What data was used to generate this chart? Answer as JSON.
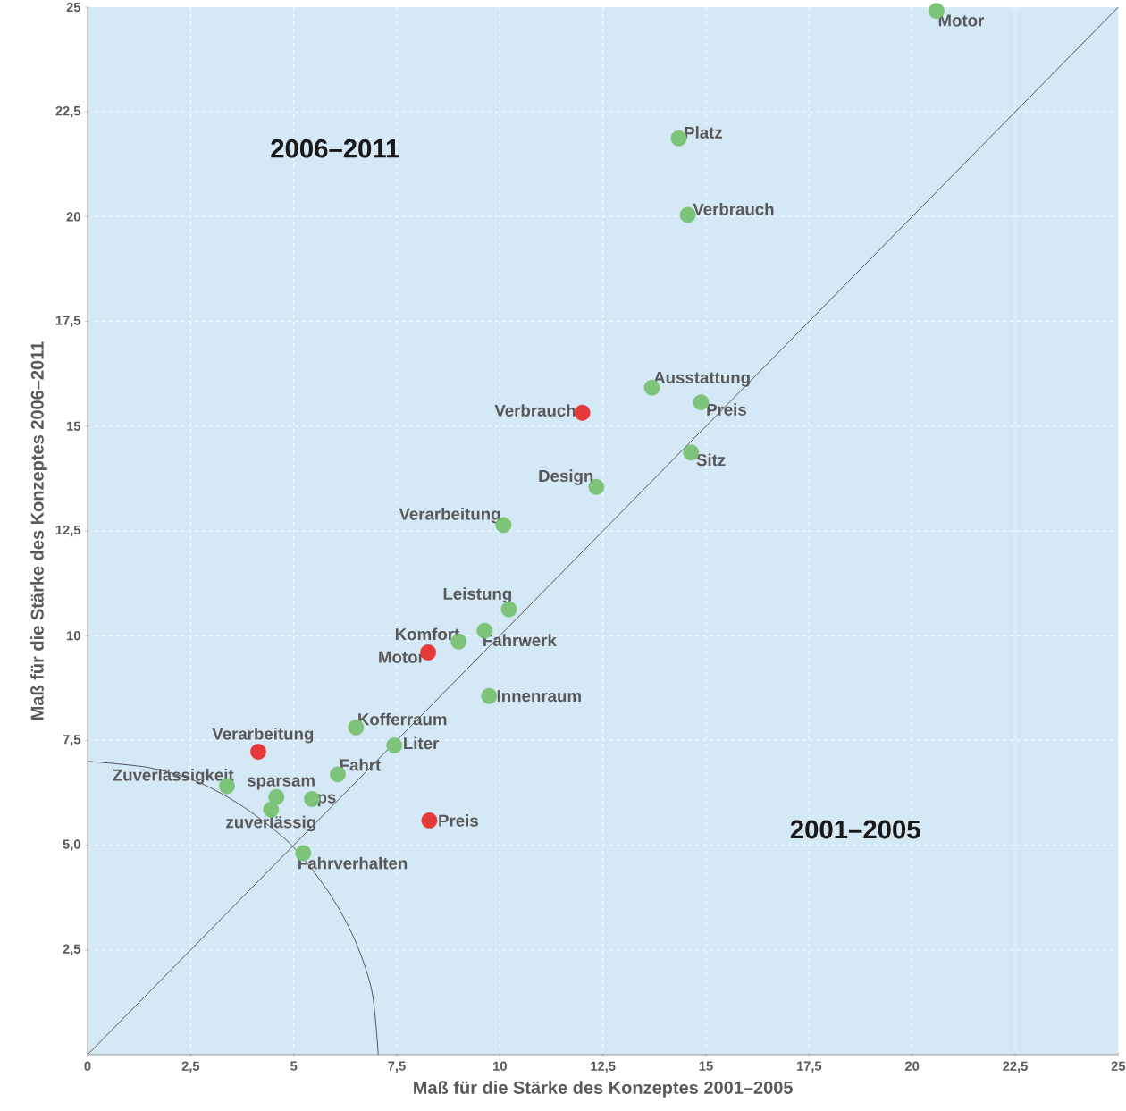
{
  "chart_data": {
    "type": "scatter",
    "xlabel": "Maß für die Stärke des Konzeptes 2001–2005",
    "ylabel": "Maß für die Stärke des Konzeptes 2006–2011",
    "xlim": [
      0,
      25
    ],
    "ylim": [
      0,
      25
    ],
    "xticks": [
      0,
      {
        "value": 2.5,
        "label": "2,5"
      },
      5,
      {
        "value": 7.5,
        "label": "7,5"
      },
      10,
      {
        "value": 12.5,
        "label": "12,5"
      },
      15,
      {
        "value": 17.5,
        "label": "17,5"
      },
      20,
      {
        "value": 22.5,
        "label": "22,5"
      },
      25
    ],
    "yticks": [
      {
        "value": 2.5,
        "label": "2,5"
      },
      {
        "value": 5,
        "label": "5,0"
      },
      {
        "value": 7.5,
        "label": "7,5"
      },
      10,
      {
        "value": 12.5,
        "label": "12,5"
      },
      15,
      {
        "value": 17.5,
        "label": "17,5"
      },
      20,
      {
        "value": 22.5,
        "label": "22,5"
      },
      25
    ],
    "grid": true,
    "marker": "circle",
    "series": [
      {
        "color": "#7dc47a",
        "x": [
          20.59,
          14.34,
          14.56,
          13.69,
          14.88,
          14.64,
          12.34,
          10.09,
          10.22,
          9.0,
          9.63,
          9.74,
          6.51,
          7.44,
          6.07,
          3.38,
          4.58,
          5.44,
          4.45,
          5.23
        ],
        "values": [
          24.91,
          21.87,
          20.04,
          15.92,
          15.57,
          14.37,
          13.55,
          12.64,
          10.63,
          9.86,
          10.12,
          8.56,
          7.81,
          7.38,
          6.69,
          6.41,
          6.15,
          6.1,
          5.85,
          4.81
        ]
      },
      {
        "color": "#e63a3a",
        "x": [
          12.0,
          8.26,
          4.14,
          8.29
        ],
        "values": [
          15.32,
          9.6,
          7.23,
          5.59
        ]
      },
      {
        "type": "line",
        "color": "#333333",
        "marker": "none",
        "x": [
          0,
          25
        ],
        "values": [
          0,
          25
        ]
      },
      {
        "type": "line",
        "color": "#333333",
        "marker": "none",
        "x": [
          0,
          1.5,
          2.7,
          3.8,
          4.95,
          5.9,
          6.5,
          6.9,
          7.05
        ],
        "values": [
          7.0,
          6.85,
          6.5,
          5.9,
          5.0,
          3.8,
          2.7,
          1.5,
          0
        ]
      }
    ],
    "annotations": [
      "2006–2011",
      "2001–2005",
      {
        "text": "Motor",
        "x": 20.59,
        "y": 24.91
      },
      {
        "text": "Platz",
        "x": 14.34,
        "y": 21.87
      },
      {
        "text": "Verbrauch",
        "x": 14.56,
        "y": 20.04
      },
      {
        "text": "Ausstattung",
        "x": 13.69,
        "y": 15.92
      },
      {
        "text": "Preis",
        "x": 14.88,
        "y": 15.57
      },
      {
        "text": "Sitz",
        "x": 14.64,
        "y": 14.37
      },
      {
        "text": "Design",
        "x": 12.34,
        "y": 13.55
      },
      {
        "text": "Verarbeitung",
        "x": 10.09,
        "y": 12.64
      },
      {
        "text": "Leistung",
        "x": 10.22,
        "y": 10.63
      },
      {
        "text": "Komfort",
        "x": 9.0,
        "y": 9.86
      },
      {
        "text": "Fahrwerk",
        "x": 9.63,
        "y": 10.12
      },
      {
        "text": "Innenraum",
        "x": 9.74,
        "y": 8.56
      },
      {
        "text": "Kofferraum",
        "x": 6.51,
        "y": 7.81
      },
      {
        "text": "Liter",
        "x": 7.44,
        "y": 7.38
      },
      {
        "text": "Fahrt",
        "x": 6.07,
        "y": 6.69
      },
      {
        "text": "Zuverlässigkeit",
        "x": 3.38,
        "y": 6.41
      },
      {
        "text": "sparsam",
        "x": 4.58,
        "y": 6.15
      },
      {
        "text": "ps",
        "x": 5.44,
        "y": 6.1
      },
      {
        "text": "zuverlässig",
        "x": 4.45,
        "y": 5.85
      },
      {
        "text": "Fahrverhalten",
        "x": 5.23,
        "y": 4.81
      },
      {
        "text": "Verbrauch",
        "x": 12.0,
        "y": 15.32
      },
      {
        "text": "Motor",
        "x": 8.26,
        "y": 9.6
      },
      {
        "text": "Verarbeitung",
        "x": 4.14,
        "y": 7.23
      },
      {
        "text": "Preis",
        "x": 8.29,
        "y": 5.59
      }
    ]
  }
}
